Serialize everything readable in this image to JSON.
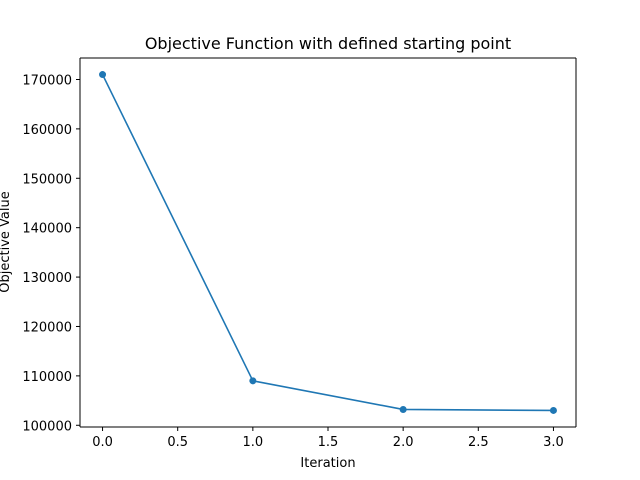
{
  "chart_data": {
    "type": "line",
    "title": "Objective Function with defined starting point",
    "xlabel": "Iteration",
    "ylabel": "Objective Value",
    "x": [
      0,
      1,
      2,
      3
    ],
    "series": [
      {
        "values": [
          171000,
          109000,
          103200,
          103000
        ],
        "color": "#1f77b4",
        "marker": "circle"
      }
    ],
    "xlim": [
      -0.15,
      3.15
    ],
    "ylim": [
      99650,
      174350
    ],
    "xticks": [
      0.0,
      0.5,
      1.0,
      1.5,
      2.0,
      2.5,
      3.0
    ],
    "xtick_labels": [
      "0.0",
      "0.5",
      "1.0",
      "1.5",
      "2.0",
      "2.5",
      "3.0"
    ],
    "yticks": [
      100000,
      110000,
      120000,
      130000,
      140000,
      150000,
      160000,
      170000
    ],
    "ytick_labels": [
      "100000",
      "110000",
      "120000",
      "130000",
      "140000",
      "150000",
      "160000",
      "170000"
    ],
    "grid": false,
    "legend": "none"
  }
}
